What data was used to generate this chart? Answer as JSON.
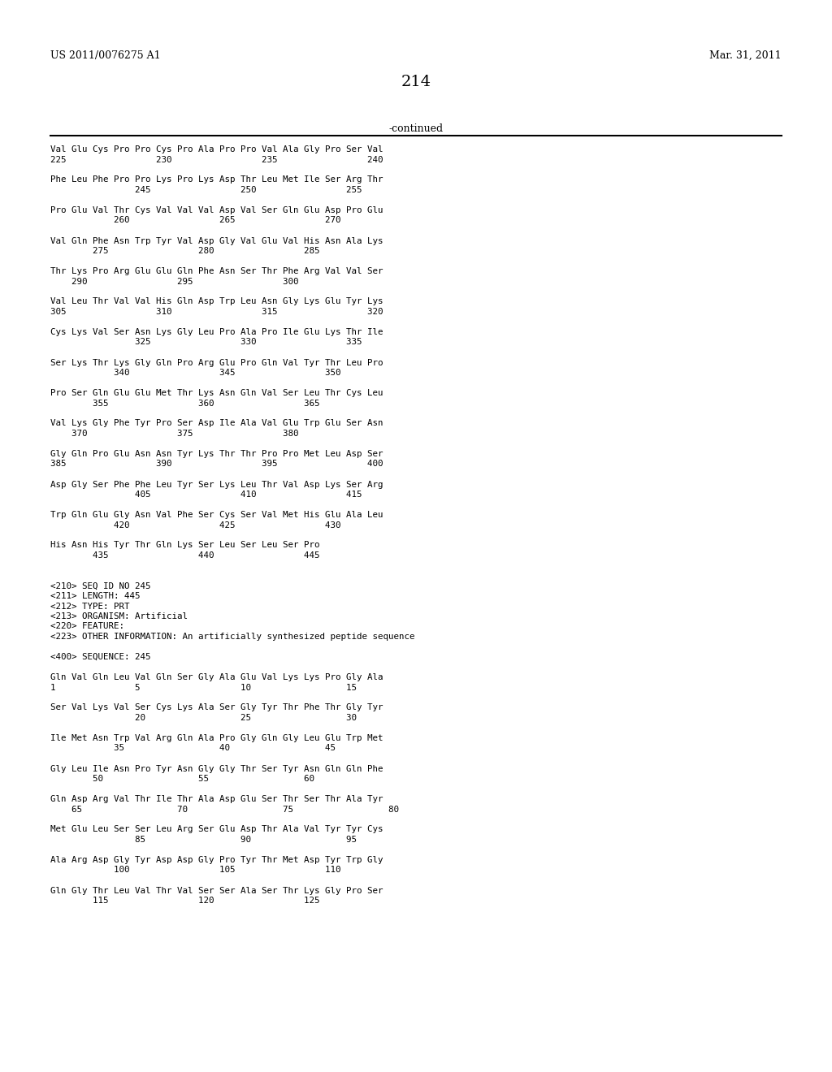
{
  "header_left": "US 2011/0076275 A1",
  "header_right": "Mar. 31, 2011",
  "page_number": "214",
  "continued_label": "-continued",
  "background_color": "#ffffff",
  "text_color": "#000000",
  "font_size": 7.8,
  "header_font_size": 9.0,
  "page_num_font_size": 14.0,
  "lines": [
    "Val Glu Cys Pro Pro Cys Pro Ala Pro Pro Val Ala Gly Pro Ser Val",
    "225                 230                 235                 240",
    "",
    "Phe Leu Phe Pro Pro Lys Pro Lys Asp Thr Leu Met Ile Ser Arg Thr",
    "                245                 250                 255",
    "",
    "Pro Glu Val Thr Cys Val Val Val Asp Val Ser Gln Glu Asp Pro Glu",
    "            260                 265                 270",
    "",
    "Val Gln Phe Asn Trp Tyr Val Asp Gly Val Glu Val His Asn Ala Lys",
    "        275                 280                 285",
    "",
    "Thr Lys Pro Arg Glu Glu Gln Phe Asn Ser Thr Phe Arg Val Val Ser",
    "    290                 295                 300",
    "",
    "Val Leu Thr Val Val His Gln Asp Trp Leu Asn Gly Lys Glu Tyr Lys",
    "305                 310                 315                 320",
    "",
    "Cys Lys Val Ser Asn Lys Gly Leu Pro Ala Pro Ile Glu Lys Thr Ile",
    "                325                 330                 335",
    "",
    "Ser Lys Thr Lys Gly Gln Pro Arg Glu Pro Gln Val Tyr Thr Leu Pro",
    "            340                 345                 350",
    "",
    "Pro Ser Gln Glu Glu Met Thr Lys Asn Gln Val Ser Leu Thr Cys Leu",
    "        355                 360                 365",
    "",
    "Val Lys Gly Phe Tyr Pro Ser Asp Ile Ala Val Glu Trp Glu Ser Asn",
    "    370                 375                 380",
    "",
    "Gly Gln Pro Glu Asn Asn Tyr Lys Thr Thr Pro Pro Met Leu Asp Ser",
    "385                 390                 395                 400",
    "",
    "Asp Gly Ser Phe Phe Leu Tyr Ser Lys Leu Thr Val Asp Lys Ser Arg",
    "                405                 410                 415",
    "",
    "Trp Gln Glu Gly Asn Val Phe Ser Cys Ser Val Met His Glu Ala Leu",
    "            420                 425                 430",
    "",
    "His Asn His Tyr Thr Gln Lys Ser Leu Ser Leu Ser Pro",
    "        435                 440                 445",
    "",
    "",
    "<210> SEQ ID NO 245",
    "<211> LENGTH: 445",
    "<212> TYPE: PRT",
    "<213> ORGANISM: Artificial",
    "<220> FEATURE:",
    "<223> OTHER INFORMATION: An artificially synthesized peptide sequence",
    "",
    "<400> SEQUENCE: 245",
    "",
    "Gln Val Gln Leu Val Gln Ser Gly Ala Glu Val Lys Lys Pro Gly Ala",
    "1               5                   10                  15",
    "",
    "Ser Val Lys Val Ser Cys Lys Ala Ser Gly Tyr Thr Phe Thr Gly Tyr",
    "                20                  25                  30",
    "",
    "Ile Met Asn Trp Val Arg Gln Ala Pro Gly Gln Gly Leu Glu Trp Met",
    "            35                  40                  45",
    "",
    "Gly Leu Ile Asn Pro Tyr Asn Gly Gly Thr Ser Tyr Asn Gln Gln Phe",
    "        50                  55                  60",
    "",
    "Gln Asp Arg Val Thr Ile Thr Ala Asp Glu Ser Thr Ser Thr Ala Tyr",
    "    65                  70                  75                  80",
    "",
    "Met Glu Leu Ser Ser Leu Arg Ser Glu Asp Thr Ala Val Tyr Tyr Cys",
    "                85                  90                  95",
    "",
    "Ala Arg Asp Gly Tyr Asp Asp Gly Pro Tyr Thr Met Asp Tyr Trp Gly",
    "            100                 105                 110",
    "",
    "Gln Gly Thr Leu Val Thr Val Ser Ser Ala Ser Thr Lys Gly Pro Ser",
    "        115                 120                 125"
  ]
}
